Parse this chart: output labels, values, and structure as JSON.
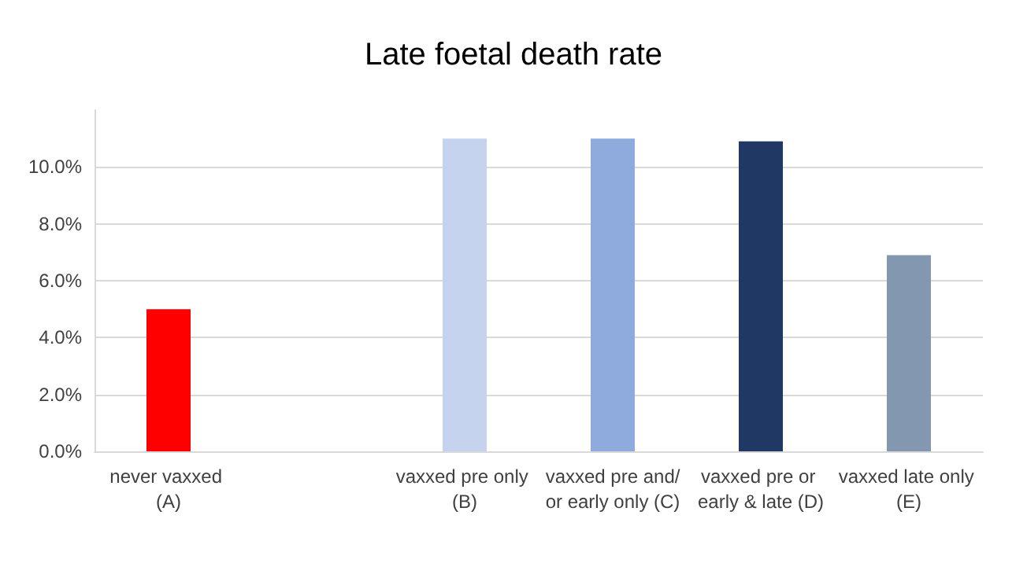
{
  "chart_data": {
    "type": "bar",
    "title": "Late foetal death rate",
    "categories": [
      "never vaxxed (A)",
      null,
      "vaxxed pre only (B)",
      "vaxxed pre and/or early only (C)",
      "vaxxed pre or early & late (D)",
      "vaxxed late only (E)"
    ],
    "values": [
      5.0,
      null,
      11.0,
      11.0,
      10.9,
      6.9
    ],
    "colors": [
      "#ff0000",
      "#ffffff",
      "#c5d3ee",
      "#8faadc",
      "#1f3864",
      "#8497b0"
    ],
    "ylim": [
      0,
      12
    ],
    "yticks": [
      {
        "value": 0,
        "label": "0.0%"
      },
      {
        "value": 2,
        "label": "2.0%"
      },
      {
        "value": 4,
        "label": "4.0%"
      },
      {
        "value": 6,
        "label": "6.0%"
      },
      {
        "value": 8,
        "label": "8.0%"
      },
      {
        "value": 10,
        "label": "10.0%"
      }
    ],
    "grid": "y"
  }
}
